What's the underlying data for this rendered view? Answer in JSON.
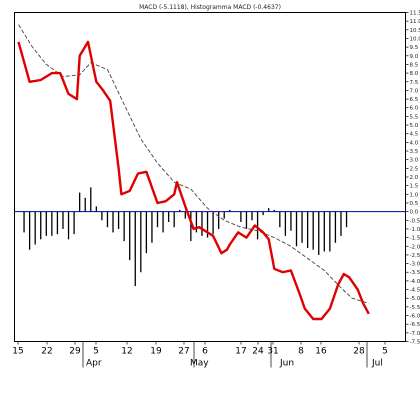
{
  "chart_data": {
    "type": "line",
    "title": "MACD (-5.1118), Histogramma MACD (-0.4637)",
    "ylim": [
      -7.5,
      11.5
    ],
    "grid": false,
    "y_ticks_right": [
      "11.5",
      "11.0",
      "10.5",
      "10.0",
      "9.5",
      "9.0",
      "8.5",
      "8.0",
      "7.5",
      "7.0",
      "6.5",
      "6.0",
      "5.5",
      "5.0",
      "4.5",
      "4.0",
      "3.5",
      "3.0",
      "2.5",
      "2.0",
      "1.5",
      "1.0",
      "0.5",
      "0.0",
      "-0.5",
      "-1.0",
      "-1.5",
      "-2.0",
      "-2.5",
      "-3.0",
      "-3.5",
      "-4.0",
      "-4.5",
      "-5.0",
      "-5.5",
      "-6.0",
      "-6.5",
      "-7.0",
      "-7.5"
    ],
    "x_ticks": [
      "15",
      "22",
      "29",
      "5",
      "12",
      "19",
      "27",
      "6",
      "17",
      "24",
      "31",
      "8",
      "16",
      "28",
      "5"
    ],
    "months": [
      "Apr",
      "May",
      "Jun",
      "Jul"
    ],
    "colors": {
      "macd": "#e00000",
      "signal": "#444444",
      "histogram": "#000000",
      "zero_line": "#0000aa"
    },
    "series": [
      {
        "name": "MACD",
        "style": "solid-red",
        "x": [
          0,
          4,
          8,
          12,
          15,
          18,
          21,
          22,
          25,
          28,
          30,
          33,
          36,
          37,
          40,
          43,
          46,
          50,
          53,
          56,
          57,
          60,
          63,
          65,
          68,
          70,
          73,
          75,
          76,
          79,
          82,
          85,
          88,
          90,
          92,
          95,
          98,
          101,
          103,
          106,
          109,
          112,
          115,
          117,
          119,
          122,
          124,
          126
        ],
        "y": [
          9.8,
          7.5,
          7.6,
          8.0,
          8.0,
          6.8,
          6.5,
          9.0,
          9.8,
          7.5,
          7.1,
          6.4,
          2.5,
          1.0,
          1.2,
          2.2,
          2.3,
          0.5,
          0.6,
          1.0,
          1.7,
          0.3,
          -1.0,
          -0.9,
          -1.2,
          -1.4,
          -2.4,
          -2.2,
          -1.9,
          -1.2,
          -1.5,
          -0.8,
          -1.2,
          -1.6,
          -3.3,
          -3.5,
          -3.4,
          -4.7,
          -5.6,
          -6.2,
          -6.2,
          -5.6,
          -4.2,
          -3.6,
          -3.8,
          -4.5,
          -5.3,
          -5.9
        ]
      },
      {
        "name": "Signal",
        "style": "dashed-grey",
        "x": [
          0,
          5,
          10,
          16,
          22,
          26,
          32,
          38,
          44,
          50,
          56,
          62,
          68,
          74,
          80,
          86,
          92,
          98,
          104,
          110,
          116,
          120,
          126
        ],
        "y": [
          10.8,
          9.5,
          8.5,
          7.8,
          7.9,
          8.6,
          8.2,
          6.2,
          4.2,
          2.8,
          1.7,
          1.3,
          0.2,
          -0.5,
          -0.9,
          -1.1,
          -1.5,
          -2.0,
          -2.7,
          -3.4,
          -4.4,
          -5.0,
          -5.3
        ]
      }
    ],
    "histogram": {
      "x": [
        2,
        4,
        6,
        8,
        10,
        12,
        14,
        16,
        18,
        20,
        22,
        24,
        26,
        28,
        30,
        32,
        34,
        36,
        38,
        40,
        42,
        44,
        46,
        48,
        50,
        52,
        54,
        56,
        58,
        60,
        62,
        64,
        66,
        68,
        70,
        72,
        74,
        76,
        78,
        80,
        82,
        84,
        86,
        88,
        90,
        92,
        94,
        96,
        98,
        100,
        102,
        104,
        106,
        108,
        110,
        112,
        114,
        116,
        118
      ],
      "values": [
        -1.2,
        -2.2,
        -1.9,
        -1.6,
        -1.4,
        -1.4,
        -1.3,
        -1.0,
        -1.6,
        -1.3,
        1.1,
        0.8,
        1.4,
        0.3,
        -0.5,
        -0.9,
        -1.2,
        -1.0,
        -1.7,
        -2.8,
        -4.3,
        -3.5,
        -2.4,
        -1.8,
        -0.9,
        -1.2,
        -0.6,
        -0.9,
        0.1,
        -0.4,
        -1.7,
        -1.2,
        -1.4,
        -1.5,
        -1.3,
        -1.0,
        -0.4,
        0.1,
        0.0,
        -0.6,
        -1.0,
        -0.5,
        -1.6,
        -0.2,
        0.2,
        0.1,
        -0.9,
        -1.4,
        -1.1,
        -2.0,
        -1.8,
        -2.1,
        -2.2,
        -2.5,
        -2.3,
        -2.3,
        -1.8,
        -1.4,
        -0.9
      ]
    }
  }
}
